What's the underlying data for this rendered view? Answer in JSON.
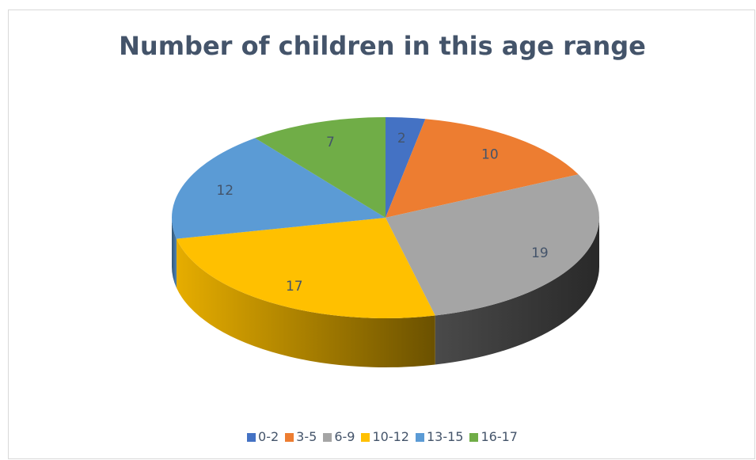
{
  "chart_data": {
    "type": "pie",
    "title": "Number of children in this age range",
    "categories": [
      "0-2",
      "3-5",
      "6-9",
      "10-12",
      "13-15",
      "16-17"
    ],
    "values": [
      2,
      10,
      19,
      17,
      12,
      7
    ],
    "colors": [
      "#4472c4",
      "#ed7d31",
      "#a5a5a5",
      "#ffc000",
      "#5b9bd5",
      "#70ad47"
    ],
    "style": "3d",
    "data_labels": true,
    "legend": "bottom"
  }
}
